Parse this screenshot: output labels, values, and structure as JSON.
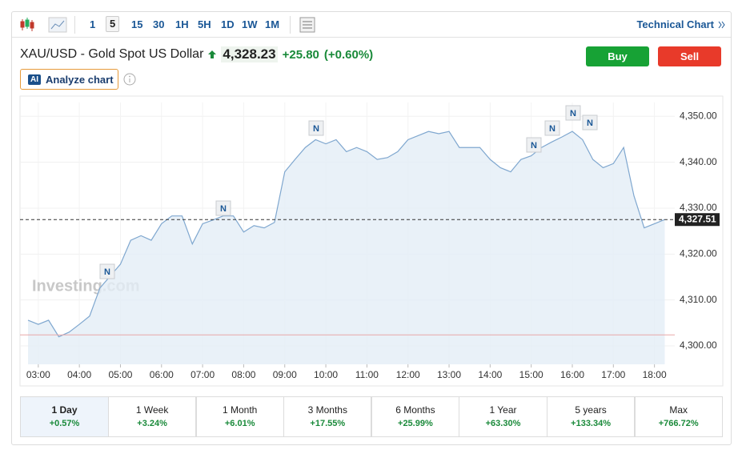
{
  "toolbar": {
    "intervals": [
      "1",
      "5",
      "15",
      "30",
      "1H",
      "5H",
      "1D",
      "1W",
      "1M"
    ],
    "selected_interval": "5",
    "technical_chart": "Technical Chart"
  },
  "header": {
    "symbol": "XAU/USD - Gold Spot US Dollar",
    "price": "4,328.23",
    "change": "+25.80",
    "change_pct": "(+0.60%)",
    "buy": "Buy",
    "sell": "Sell",
    "ai_badge": "AI",
    "analyze": "Analyze chart"
  },
  "chart_data": {
    "type": "line",
    "color": "#7fa7cf",
    "fill": "#e3edf6",
    "categories": [
      null,
      "03:00",
      null,
      null,
      null,
      "04:00",
      null,
      null,
      null,
      "05:00",
      null,
      null,
      null,
      "06:00",
      null,
      null,
      null,
      "07:00",
      null,
      null,
      null,
      "08:00",
      null,
      null,
      null,
      "09:00",
      null,
      null,
      null,
      "10:00",
      null,
      null,
      null,
      "11:00",
      null,
      null,
      null,
      "12:00",
      null,
      null,
      null,
      "13:00",
      null,
      null,
      null,
      "14:00",
      null,
      null,
      null,
      "15:00",
      null,
      null,
      null,
      "16:00",
      null,
      null,
      null,
      "17:00",
      null,
      null,
      null,
      "18:00",
      null
    ],
    "values": [
      4305.6,
      4304.7,
      4305.6,
      4302,
      4303,
      4304.7,
      4306.5,
      4312.6,
      4315.2,
      4317.8,
      4323,
      4324,
      4323,
      4326.6,
      4328.3,
      4328.3,
      4322.2,
      4326.6,
      4327.4,
      4328.3,
      4328.3,
      4324.8,
      4326.2,
      4325.7,
      4326.9,
      4337.9,
      4340.6,
      4343.2,
      4344.9,
      4344,
      4344.9,
      4342.3,
      4343.2,
      4342.3,
      4340.6,
      4341,
      4342.3,
      4344.9,
      4345.8,
      4346.7,
      4346.2,
      4346.7,
      4343.2,
      4343.2,
      4343.2,
      4340.6,
      4338.8,
      4337.9,
      4340.6,
      4341.4,
      4343.2,
      4344.4,
      4345.5,
      4346.7,
      4344.9,
      4340.6,
      4338.8,
      4339.7,
      4343.2,
      4332.7,
      4325.7,
      4326.6,
      4327.51
    ],
    "ylim": [
      4296,
      4353
    ],
    "yticks": [
      {
        "value": 4300,
        "label": "4,300.00"
      },
      {
        "value": 4310,
        "label": "4,310.00"
      },
      {
        "value": 4320,
        "label": "4,320.00"
      },
      {
        "value": 4330,
        "label": "4,330.00"
      },
      {
        "value": 4340,
        "label": "4,340.00"
      },
      {
        "value": 4350,
        "label": "4,350.00"
      }
    ],
    "reference_lines": [
      {
        "value": 4327.51,
        "label": "4,327.51",
        "color": "#333333",
        "dashed": true
      },
      {
        "value": 4302.4,
        "color": "#e8a8a8",
        "dashed": false
      }
    ],
    "annotations": [
      "N",
      "N",
      "N",
      "N",
      "N",
      "N",
      "N"
    ],
    "watermark": "Investing.com",
    "grid": true
  },
  "periods": [
    {
      "label": "1 Day",
      "change": "+0.57%"
    },
    {
      "label": "1 Week",
      "change": "+3.24%"
    },
    {
      "label": "1 Month",
      "change": "+6.01%"
    },
    {
      "label": "3 Months",
      "change": "+17.55%"
    },
    {
      "label": "6 Months",
      "change": "+25.99%"
    },
    {
      "label": "1 Year",
      "change": "+63.30%"
    },
    {
      "label": "5 years",
      "change": "+133.34%"
    },
    {
      "label": "Max",
      "change": "+766.72%"
    }
  ],
  "selected_period": "1 Day"
}
